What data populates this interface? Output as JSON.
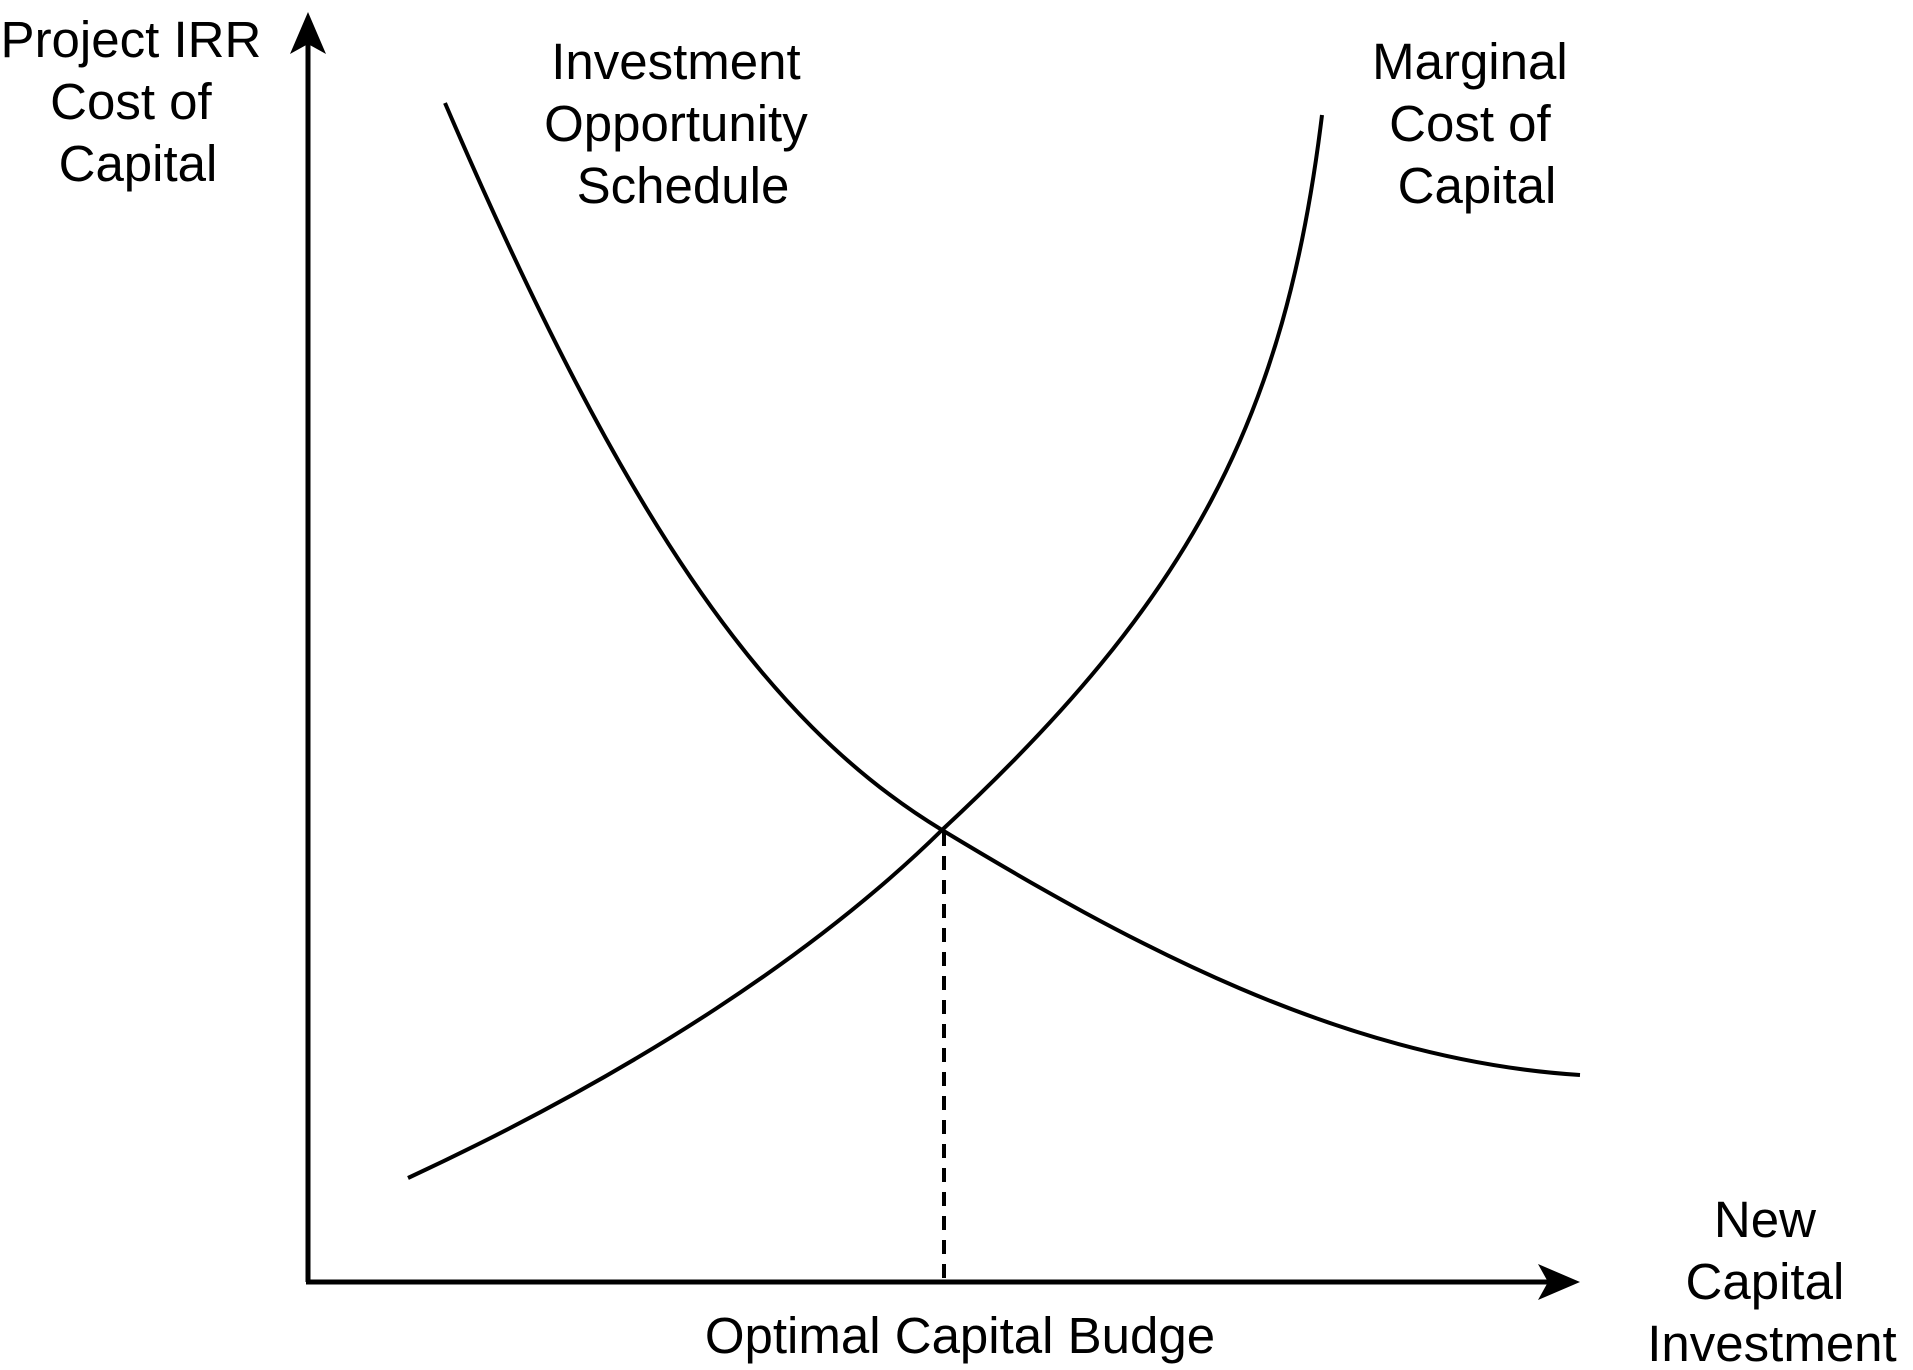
{
  "y_axis_label": [
    "Project IRR",
    "Cost of",
    "Capital"
  ],
  "x_axis_label": [
    "New",
    "Capital",
    "Investment"
  ],
  "curve_labels": {
    "investment_opportunity_schedule": [
      "Investment",
      "Opportunity",
      "Schedule"
    ],
    "marginal_cost_of_capital": [
      "Marginal",
      "Cost of",
      "Capital"
    ]
  },
  "optimal_label": "Optimal Capital Budge",
  "colors": {
    "line": "#000000",
    "background": "#ffffff"
  }
}
